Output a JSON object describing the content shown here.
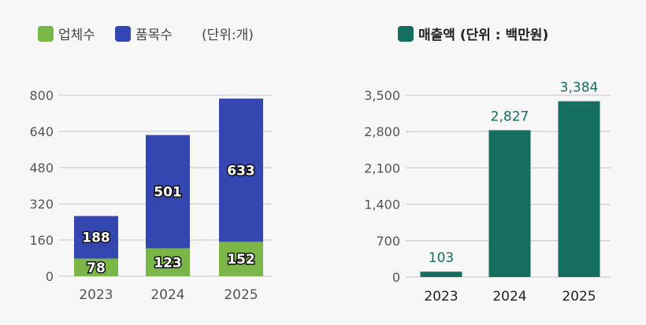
{
  "chart_data": [
    {
      "type": "bar",
      "stacked": true,
      "categories": [
        "2023",
        "2024",
        "2025"
      ],
      "series": [
        {
          "name": "업체수",
          "values": [
            78,
            123,
            152
          ],
          "color": "#7ab648"
        },
        {
          "name": "품목수",
          "values": [
            188,
            501,
            633
          ],
          "color": "#3446b0"
        }
      ],
      "unit_label": "(단위:개)",
      "yticks": [
        "0",
        "160",
        "320",
        "480",
        "640",
        "800"
      ],
      "ylim": [
        0,
        800
      ],
      "grid": true,
      "legend": "top"
    },
    {
      "type": "bar",
      "categories": [
        "2023",
        "2024",
        "2025"
      ],
      "series": [
        {
          "name": "매출액 (단위 : 백만원)",
          "values": [
            103,
            2827,
            3384
          ],
          "labels": [
            "103",
            "2,827",
            "3,384"
          ],
          "color": "#156e5f"
        }
      ],
      "yticks": [
        "0",
        "700",
        "1,400",
        "2,100",
        "2,800",
        "3,500"
      ],
      "ylim": [
        0,
        3500
      ],
      "grid": true,
      "legend": "top"
    }
  ]
}
